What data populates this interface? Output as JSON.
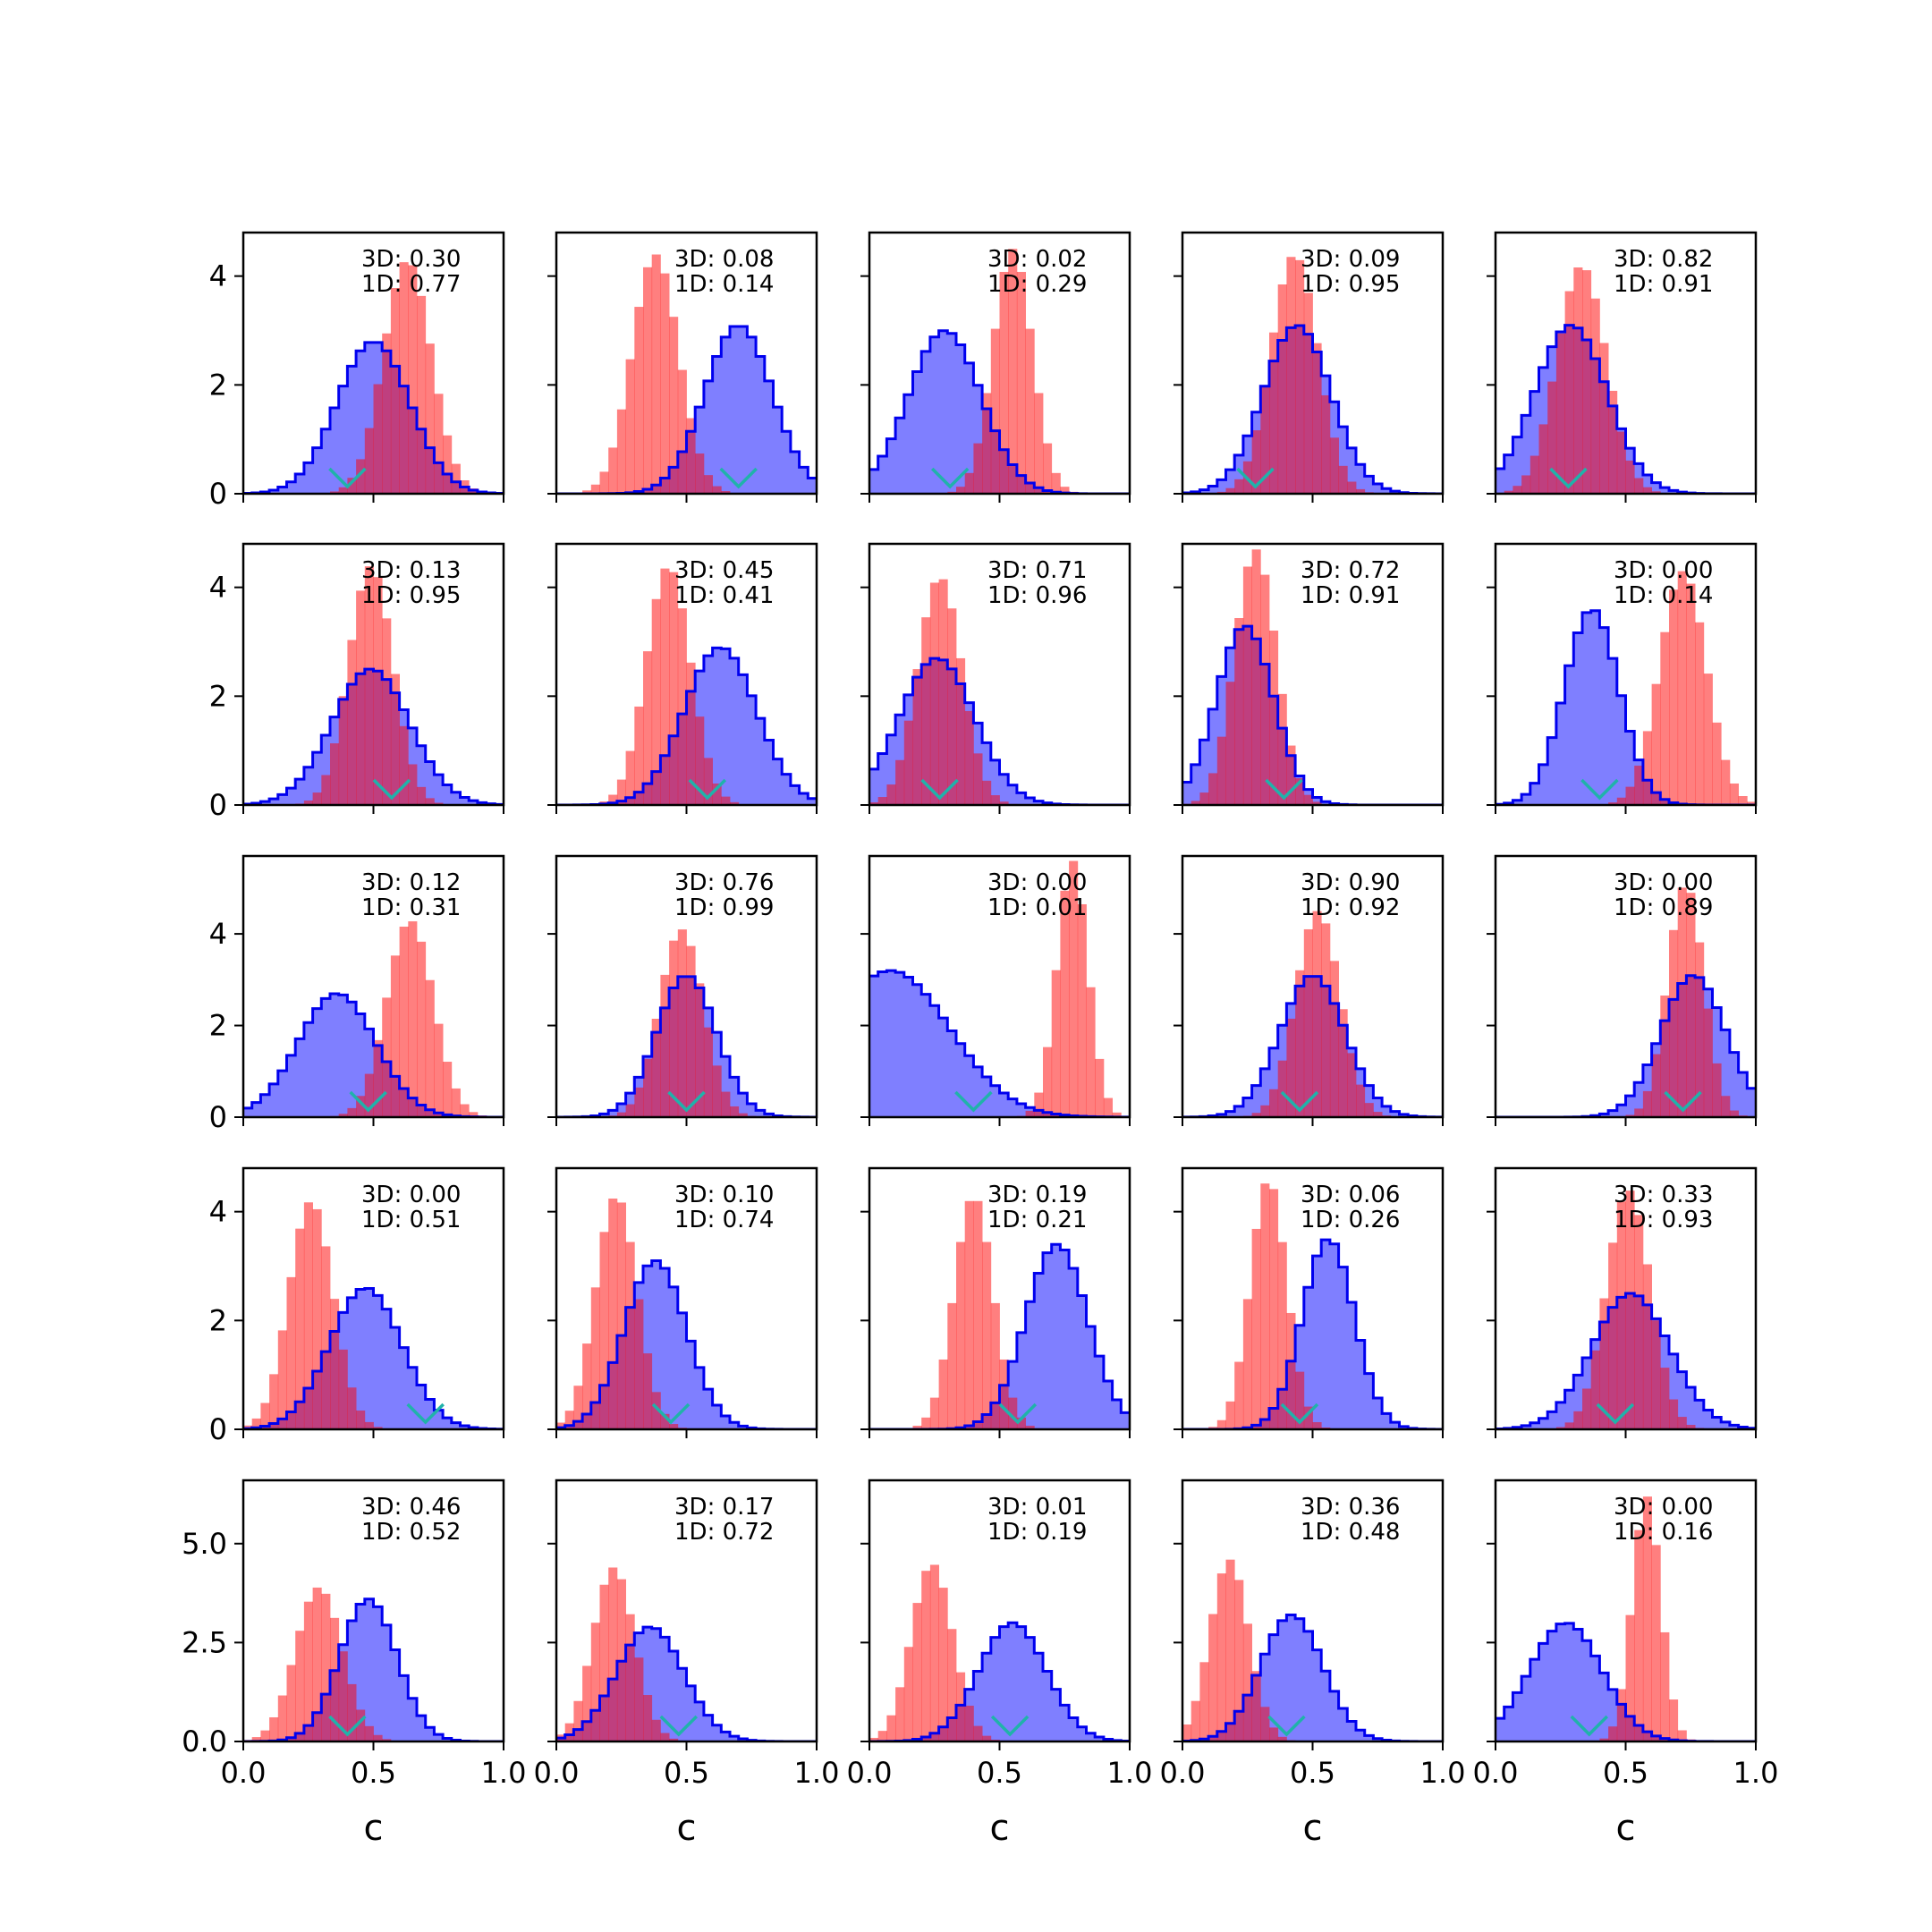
{
  "chart_data": {
    "type": "histogram-grid",
    "rows": 5,
    "cols": 5,
    "xlabel": "c",
    "xlim": [
      0.0,
      1.0
    ],
    "xticks": [
      "0.0",
      "0.5",
      "1.0"
    ],
    "row_yticks": [
      {
        "ylim": [
          0,
          4.8
        ],
        "ticks": [
          {
            "v": 0,
            "label": "0"
          },
          {
            "v": 2,
            "label": "2"
          },
          {
            "v": 4,
            "label": "4"
          }
        ]
      },
      {
        "ylim": [
          0,
          4.8
        ],
        "ticks": [
          {
            "v": 0,
            "label": "0"
          },
          {
            "v": 2,
            "label": "2"
          },
          {
            "v": 4,
            "label": "4"
          }
        ]
      },
      {
        "ylim": [
          0,
          5.7
        ],
        "ticks": [
          {
            "v": 0,
            "label": "0"
          },
          {
            "v": 2,
            "label": "2"
          },
          {
            "v": 4,
            "label": "4"
          }
        ]
      },
      {
        "ylim": [
          0,
          4.8
        ],
        "ticks": [
          {
            "v": 0,
            "label": "0"
          },
          {
            "v": 2,
            "label": "2"
          },
          {
            "v": 4,
            "label": "4"
          }
        ]
      },
      {
        "ylim": [
          0,
          6.6
        ],
        "ticks": [
          {
            "v": 0,
            "label": "0.0"
          },
          {
            "v": 2.5,
            "label": "2.5"
          },
          {
            "v": 5,
            "label": "5.0"
          }
        ]
      }
    ],
    "colors": {
      "blue_fill": "#0000ff",
      "blue_line": "#0000ee",
      "red_fill": "#ff0000",
      "marker": "#20b2aa"
    },
    "panels": [
      {
        "d3": "3D: 0.30",
        "d1": "1D: 0.77",
        "blue": {
          "mu": 0.5,
          "sd": 0.14,
          "peak": 2.8
        },
        "red": {
          "mu": 0.63,
          "sd": 0.092,
          "peak": 4.3
        },
        "marker": 0.4
      },
      {
        "d3": "3D: 0.08",
        "d1": "1D: 0.14",
        "blue": {
          "mu": 0.7,
          "sd": 0.13,
          "peak": 3.1
        },
        "red": {
          "mu": 0.38,
          "sd": 0.09,
          "peak": 4.4
        },
        "marker": 0.7
      },
      {
        "d3": "3D: 0.02",
        "d1": "1D: 0.29",
        "blue": {
          "mu": 0.29,
          "sd": 0.14,
          "peak": 3.0
        },
        "red": {
          "mu": 0.55,
          "sd": 0.075,
          "peak": 4.5
        },
        "marker": 0.31
      },
      {
        "d3": "3D: 0.09",
        "d1": "1D: 0.95",
        "blue": {
          "mu": 0.44,
          "sd": 0.13,
          "peak": 3.1
        },
        "red": {
          "mu": 0.43,
          "sd": 0.09,
          "peak": 4.4
        },
        "marker": 0.28
      },
      {
        "d3": "3D: 0.82",
        "d1": "1D: 0.91",
        "blue": {
          "mu": 0.29,
          "sd": 0.14,
          "peak": 3.1
        },
        "red": {
          "mu": 0.33,
          "sd": 0.095,
          "peak": 4.2
        },
        "marker": 0.28
      },
      {
        "d3": "3D: 0.13",
        "d1": "1D: 0.95",
        "blue": {
          "mu": 0.49,
          "sd": 0.15,
          "peak": 2.5
        },
        "red": {
          "mu": 0.49,
          "sd": 0.085,
          "peak": 4.4
        },
        "marker": 0.57
      },
      {
        "d3": "3D: 0.45",
        "d1": "1D: 0.41",
        "blue": {
          "mu": 0.63,
          "sd": 0.14,
          "peak": 2.9
        },
        "red": {
          "mu": 0.43,
          "sd": 0.085,
          "peak": 4.4
        },
        "marker": 0.58
      },
      {
        "d3": "3D: 0.71",
        "d1": "1D: 0.96",
        "blue": {
          "mu": 0.26,
          "sd": 0.145,
          "peak": 2.7
        },
        "red": {
          "mu": 0.27,
          "sd": 0.085,
          "peak": 4.2
        },
        "marker": 0.27
      },
      {
        "d3": "3D: 0.72",
        "d1": "1D: 0.91",
        "blue": {
          "mu": 0.24,
          "sd": 0.11,
          "peak": 3.3
        },
        "red": {
          "mu": 0.28,
          "sd": 0.08,
          "peak": 4.7
        },
        "marker": 0.39
      },
      {
        "d3": "3D: 0.00",
        "d1": "1D: 0.14",
        "blue": {
          "mu": 0.37,
          "sd": 0.105,
          "peak": 3.6
        },
        "red": {
          "mu": 0.72,
          "sd": 0.09,
          "peak": 4.3
        },
        "marker": 0.4
      },
      {
        "d3": "3D: 0.12",
        "d1": "1D: 0.31",
        "blue": {
          "mu": 0.36,
          "sd": 0.15,
          "peak": 2.7
        },
        "red": {
          "mu": 0.64,
          "sd": 0.09,
          "peak": 4.3
        },
        "marker": 0.48
      },
      {
        "d3": "3D: 0.76",
        "d1": "1D: 0.99",
        "blue": {
          "mu": 0.5,
          "sd": 0.115,
          "peak": 3.1
        },
        "red": {
          "mu": 0.48,
          "sd": 0.085,
          "peak": 4.1
        },
        "marker": 0.5
      },
      {
        "d3": "3D: 0.00",
        "d1": "1D: 0.01",
        "blue": {
          "mu": 0.08,
          "sd": 0.23,
          "peak": 3.2
        },
        "red": {
          "mu": 0.78,
          "sd": 0.06,
          "peak": 5.6
        },
        "marker": 0.4
      },
      {
        "d3": "3D: 0.90",
        "d1": "1D: 0.92",
        "blue": {
          "mu": 0.5,
          "sd": 0.125,
          "peak": 3.1
        },
        "red": {
          "mu": 0.52,
          "sd": 0.085,
          "peak": 4.5
        },
        "marker": 0.45
      },
      {
        "d3": "3D: 0.00",
        "d1": "1D: 0.89",
        "blue": {
          "mu": 0.76,
          "sd": 0.125,
          "peak": 3.1
        },
        "red": {
          "mu": 0.73,
          "sd": 0.07,
          "peak": 5.1
        },
        "marker": 0.72
      },
      {
        "d3": "3D: 0.00",
        "d1": "1D: 0.51",
        "blue": {
          "mu": 0.47,
          "sd": 0.14,
          "peak": 2.6
        },
        "red": {
          "mu": 0.26,
          "sd": 0.085,
          "peak": 4.2
        },
        "marker": 0.7
      },
      {
        "d3": "3D: 0.10",
        "d1": "1D: 0.74",
        "blue": {
          "mu": 0.38,
          "sd": 0.12,
          "peak": 3.1
        },
        "red": {
          "mu": 0.23,
          "sd": 0.08,
          "peak": 4.3
        },
        "marker": 0.44
      },
      {
        "d3": "3D: 0.19",
        "d1": "1D: 0.21",
        "blue": {
          "mu": 0.72,
          "sd": 0.12,
          "peak": 3.4
        },
        "red": {
          "mu": 0.4,
          "sd": 0.075,
          "peak": 4.3
        },
        "marker": 0.57
      },
      {
        "d3": "3D: 0.06",
        "d1": "1D: 0.26",
        "blue": {
          "mu": 0.56,
          "sd": 0.1,
          "peak": 3.5
        },
        "red": {
          "mu": 0.33,
          "sd": 0.07,
          "peak": 4.6
        },
        "marker": 0.45
      },
      {
        "d3": "3D: 0.33",
        "d1": "1D: 0.93",
        "blue": {
          "mu": 0.52,
          "sd": 0.15,
          "peak": 2.5
        },
        "red": {
          "mu": 0.51,
          "sd": 0.085,
          "peak": 4.4
        },
        "marker": 0.46
      },
      {
        "d3": "3D: 0.46",
        "d1": "1D: 0.52",
        "blue": {
          "mu": 0.48,
          "sd": 0.11,
          "peak": 3.6
        },
        "red": {
          "mu": 0.29,
          "sd": 0.09,
          "peak": 3.9
        },
        "marker": 0.4
      },
      {
        "d3": "3D: 0.17",
        "d1": "1D: 0.72",
        "blue": {
          "mu": 0.36,
          "sd": 0.13,
          "peak": 2.9
        },
        "red": {
          "mu": 0.22,
          "sd": 0.08,
          "peak": 4.4
        },
        "marker": 0.47
      },
      {
        "d3": "3D: 0.01",
        "d1": "1D: 0.19",
        "blue": {
          "mu": 0.55,
          "sd": 0.13,
          "peak": 3.0
        },
        "red": {
          "mu": 0.24,
          "sd": 0.08,
          "peak": 4.5
        },
        "marker": 0.54
      },
      {
        "d3": "3D: 0.36",
        "d1": "1D: 0.48",
        "blue": {
          "mu": 0.42,
          "sd": 0.12,
          "peak": 3.2
        },
        "red": {
          "mu": 0.18,
          "sd": 0.075,
          "peak": 4.6
        },
        "marker": 0.4
      },
      {
        "d3": "3D: 0.00",
        "d1": "1D: 0.16",
        "blue": {
          "mu": 0.27,
          "sd": 0.14,
          "peak": 3.0
        },
        "red": {
          "mu": 0.58,
          "sd": 0.055,
          "peak": 6.2
        },
        "marker": 0.36
      }
    ]
  }
}
